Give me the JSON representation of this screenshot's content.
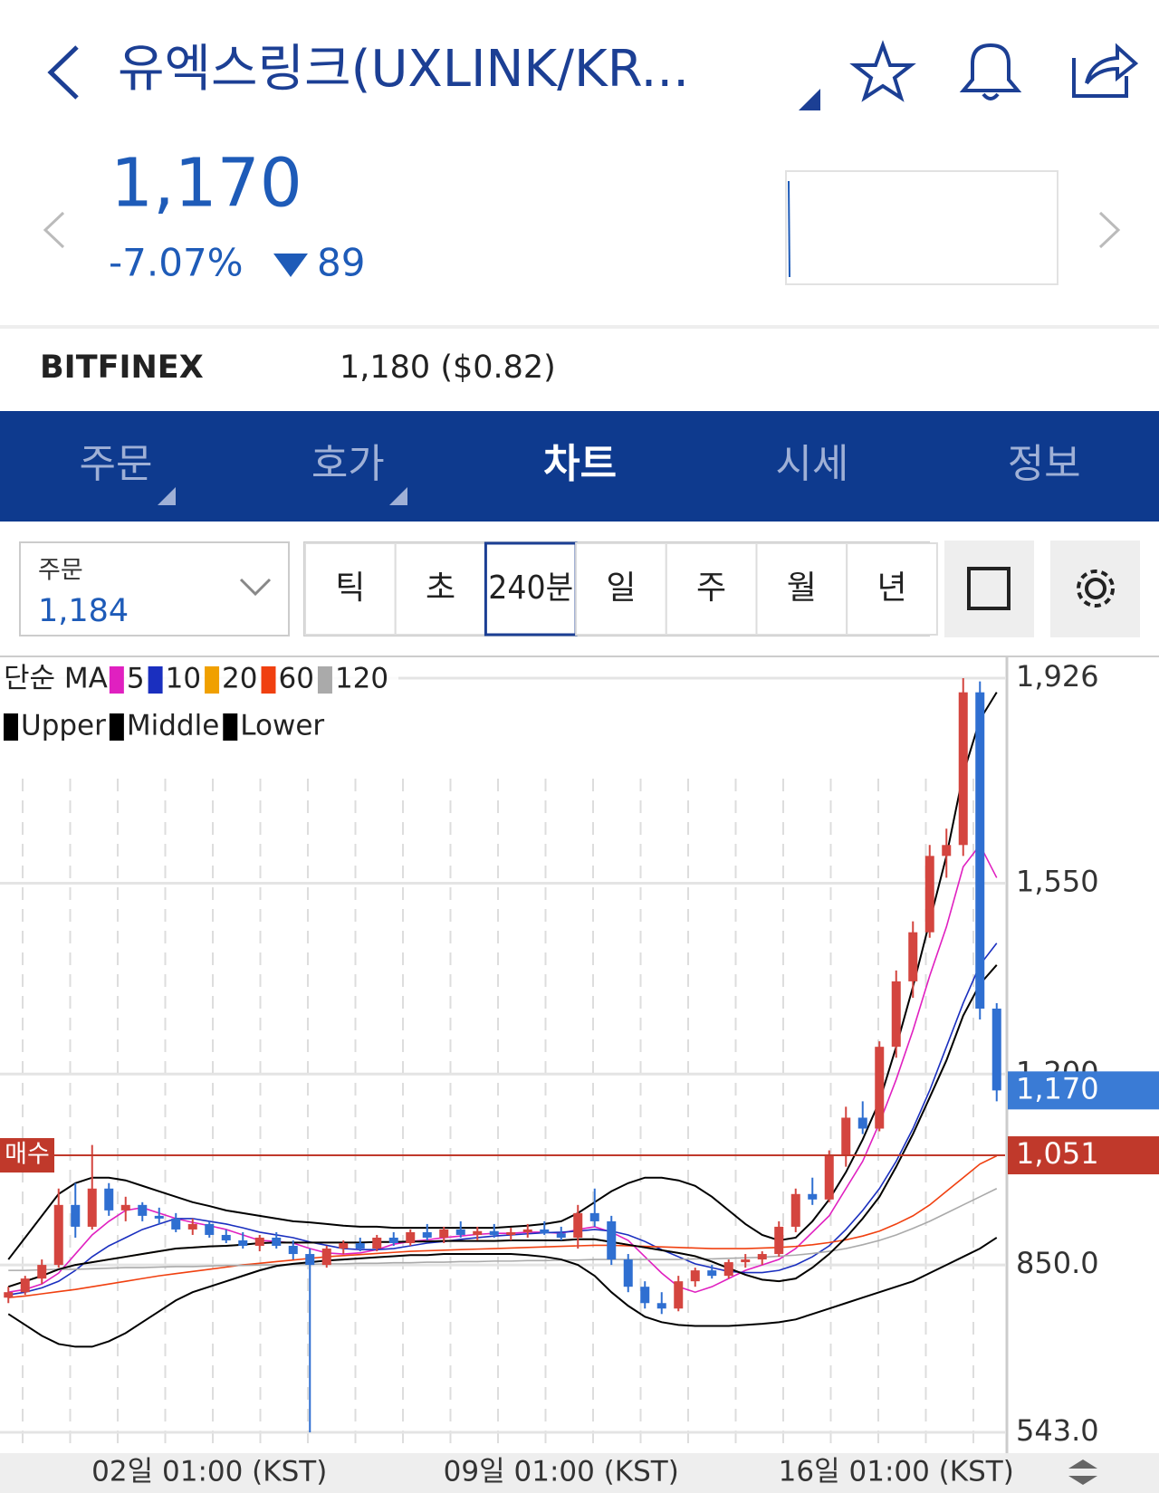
{
  "header": {
    "title": "유엑스링크(UXLINK/KR...",
    "price": "1,170",
    "change_pct": "-7.07%",
    "change": "89"
  },
  "exchange": {
    "name": "BITFINEX",
    "price": "1,180 ($0.82)"
  },
  "tabs": [
    "주문",
    "호가",
    "차트",
    "시세",
    "정보"
  ],
  "active_tab": "차트",
  "order_box": {
    "label": "주문",
    "value": "1,184"
  },
  "periods": [
    "틱",
    "초",
    "240분",
    "일",
    "주",
    "월",
    "년"
  ],
  "selected_period": "240분",
  "chart_data": {
    "type": "candlestick",
    "legend_title": "단순 MA",
    "categories": [
      null,
      null,
      null,
      null,
      null,
      null,
      null,
      null,
      null,
      null,
      null,
      null,
      "02일 01:00 (KST)",
      null,
      null,
      null,
      null,
      null,
      null,
      null,
      null,
      null,
      null,
      null,
      null,
      null,
      null,
      null,
      null,
      null,
      null,
      null,
      null,
      "09일 01:00 (KST)",
      null,
      null,
      null,
      null,
      null,
      null,
      null,
      null,
      null,
      null,
      null,
      null,
      null,
      null,
      null,
      null,
      null,
      null,
      null,
      "16일 01:00 (KST)",
      null,
      null,
      null,
      null,
      null,
      null
    ],
    "open": [
      790,
      800,
      825,
      850,
      960,
      920,
      990,
      950,
      960,
      940,
      935,
      915,
      925,
      905,
      895,
      885,
      900,
      885,
      870,
      850,
      880,
      890,
      880,
      900,
      890,
      910,
      900,
      915,
      905,
      912,
      905,
      910,
      915,
      908,
      900,
      945,
      930,
      860,
      810,
      780,
      770,
      820,
      840,
      830,
      855,
      860,
      870,
      920,
      980,
      970,
      1050,
      1120,
      1100,
      1250,
      1370,
      1460,
      1600,
      1620,
      1900,
      1320
    ],
    "high": [
      810,
      830,
      860,
      990,
      1000,
      1070,
      1000,
      975,
      965,
      955,
      945,
      935,
      930,
      915,
      910,
      905,
      910,
      895,
      880,
      885,
      895,
      900,
      905,
      910,
      915,
      925,
      920,
      930,
      920,
      925,
      918,
      925,
      930,
      920,
      960,
      990,
      940,
      870,
      820,
      800,
      830,
      845,
      850,
      860,
      870,
      875,
      930,
      990,
      1010,
      1060,
      1140,
      1150,
      1260,
      1390,
      1480,
      1620,
      1650,
      1926,
      1920,
      1330
    ],
    "low": [
      780,
      795,
      815,
      845,
      900,
      915,
      940,
      930,
      930,
      925,
      910,
      905,
      900,
      890,
      880,
      875,
      880,
      860,
      543,
      845,
      870,
      875,
      875,
      885,
      885,
      895,
      890,
      900,
      895,
      900,
      895,
      900,
      905,
      895,
      880,
      920,
      850,
      800,
      770,
      760,
      765,
      810,
      825,
      825,
      845,
      850,
      865,
      910,
      960,
      965,
      1030,
      1090,
      1095,
      1230,
      1340,
      1450,
      1560,
      1600,
      1300,
      1150
    ],
    "close": [
      800,
      825,
      850,
      960,
      920,
      990,
      950,
      960,
      940,
      935,
      915,
      925,
      905,
      895,
      885,
      900,
      885,
      870,
      850,
      880,
      890,
      880,
      900,
      890,
      910,
      900,
      915,
      905,
      912,
      905,
      910,
      915,
      908,
      900,
      945,
      930,
      860,
      810,
      780,
      770,
      820,
      840,
      830,
      855,
      860,
      870,
      920,
      980,
      970,
      1050,
      1120,
      1100,
      1250,
      1370,
      1460,
      1600,
      1620,
      1900,
      1320,
      1170
    ],
    "up_color": "#d4453f",
    "down_color": "#2f6fd1",
    "series": [
      {
        "name": "5",
        "color": "#e020c0",
        "values": [
          800,
          805,
          815,
          835,
          870,
          905,
          930,
          950,
          955,
          945,
          935,
          928,
          922,
          915,
          905,
          895,
          893,
          890,
          880,
          872,
          870,
          872,
          878,
          888,
          893,
          896,
          900,
          903,
          906,
          908,
          908,
          910,
          910,
          908,
          915,
          920,
          910,
          895,
          865,
          835,
          810,
          800,
          810,
          825,
          840,
          850,
          860,
          880,
          910,
          940,
          990,
          1040,
          1110,
          1190,
          1280,
          1380,
          1470,
          1580,
          1620,
          1560
        ]
      },
      {
        "name": "10",
        "color": "#1a2fbf",
        "values": [
          795,
          800,
          808,
          820,
          840,
          865,
          885,
          900,
          915,
          925,
          935,
          935,
          930,
          925,
          918,
          910,
          905,
          900,
          892,
          886,
          880,
          878,
          878,
          880,
          885,
          890,
          893,
          897,
          900,
          903,
          905,
          907,
          909,
          910,
          912,
          915,
          912,
          905,
          893,
          878,
          865,
          852,
          845,
          838,
          836,
          836,
          840,
          850,
          865,
          885,
          915,
          950,
          990,
          1040,
          1100,
          1170,
          1250,
          1330,
          1400,
          1440
        ]
      },
      {
        "name": "20",
        "color": "#f0a000",
        "values": [
          810,
          820,
          830,
          842,
          850,
          855,
          860,
          865,
          870,
          875,
          880,
          882,
          884,
          885,
          887,
          890,
          891,
          891,
          891,
          891,
          891,
          891,
          892,
          892,
          893,
          893,
          894,
          894,
          894,
          894,
          895,
          895,
          895,
          895,
          897,
          897,
          892,
          887,
          882,
          877,
          872,
          866,
          856,
          844,
          832,
          823,
          820,
          825,
          845,
          870,
          900,
          935,
          975,
          1030,
          1090,
          1157,
          1225,
          1307,
          1365,
          1400
        ]
      },
      {
        "name": "60",
        "color": "#f04010",
        "values": [
          790,
          793,
          797,
          801,
          805,
          810,
          815,
          820,
          825,
          830,
          834,
          838,
          842,
          846,
          850,
          853,
          856,
          859,
          862,
          865,
          867,
          869,
          871,
          873,
          875,
          876,
          877,
          878,
          879,
          880,
          881,
          882,
          883,
          884,
          885,
          886,
          886,
          885,
          884,
          883,
          882,
          881,
          880,
          880,
          880,
          881,
          882,
          884,
          887,
          891,
          896,
          903,
          912,
          925,
          940,
          960,
          985,
          1010,
          1035,
          1050
        ]
      },
      {
        "name": "120",
        "color": "#aaaaaa",
        "values": [
          840,
          840,
          841,
          842,
          842,
          843,
          844,
          845,
          845,
          846,
          847,
          847,
          848,
          849,
          849,
          850,
          850,
          851,
          851,
          852,
          852,
          853,
          853,
          854,
          854,
          855,
          855,
          856,
          856,
          857,
          857,
          858,
          858,
          859,
          859,
          860,
          860,
          860,
          860,
          860,
          860,
          861,
          861,
          862,
          863,
          864,
          866,
          868,
          871,
          875,
          880,
          887,
          895,
          905,
          917,
          930,
          945,
          960,
          975,
          990
        ]
      },
      {
        "name": "Upper",
        "color": "#000000",
        "values": [
          860,
          900,
          940,
          980,
          1000,
          1010,
          1010,
          1005,
          995,
          985,
          975,
          965,
          958,
          950,
          945,
          940,
          935,
          930,
          928,
          925,
          922,
          920,
          920,
          918,
          918,
          918,
          918,
          918,
          918,
          918,
          920,
          922,
          925,
          930,
          945,
          965,
          985,
          1000,
          1010,
          1010,
          1005,
          995,
          975,
          950,
          925,
          905,
          895,
          900,
          930,
          970,
          1020,
          1080,
          1150,
          1250,
          1360,
          1480,
          1600,
          1750,
          1850,
          1900
        ]
      },
      {
        "name": "Middle",
        "color": "#000000",
        "values": [
          810,
          820,
          830,
          842,
          850,
          855,
          860,
          865,
          870,
          875,
          880,
          882,
          884,
          885,
          887,
          890,
          891,
          891,
          891,
          891,
          891,
          891,
          892,
          892,
          893,
          893,
          894,
          894,
          894,
          894,
          895,
          895,
          895,
          895,
          897,
          897,
          892,
          887,
          882,
          877,
          872,
          866,
          856,
          844,
          832,
          823,
          820,
          825,
          845,
          870,
          900,
          935,
          975,
          1030,
          1090,
          1157,
          1225,
          1307,
          1365,
          1400
        ]
      },
      {
        "name": "Lower",
        "color": "#000000",
        "values": [
          760,
          740,
          720,
          705,
          700,
          700,
          710,
          725,
          745,
          765,
          785,
          800,
          810,
          820,
          830,
          840,
          848,
          852,
          855,
          858,
          860,
          862,
          864,
          866,
          868,
          868,
          870,
          870,
          870,
          870,
          870,
          868,
          865,
          860,
          850,
          830,
          800,
          775,
          755,
          745,
          740,
          738,
          738,
          738,
          740,
          742,
          745,
          750,
          760,
          770,
          780,
          790,
          800,
          810,
          820,
          835,
          850,
          865,
          880,
          900
        ]
      }
    ],
    "ylim": [
      543,
      1926
    ],
    "yticks": [
      {
        "value": 543,
        "label": "543.0"
      },
      {
        "value": 850,
        "label": "850.0"
      },
      {
        "value": 1200,
        "label": "1,200"
      },
      {
        "value": 1550,
        "label": "1,550"
      },
      {
        "value": 1926,
        "label": "1,926"
      }
    ],
    "grid": true,
    "price_line": {
      "value": 1170,
      "label": "1,170",
      "color": "#3a7bd5"
    },
    "buy_line": {
      "name": "매수",
      "value": 1051,
      "label": "1,051",
      "color": "#c0392b"
    }
  }
}
